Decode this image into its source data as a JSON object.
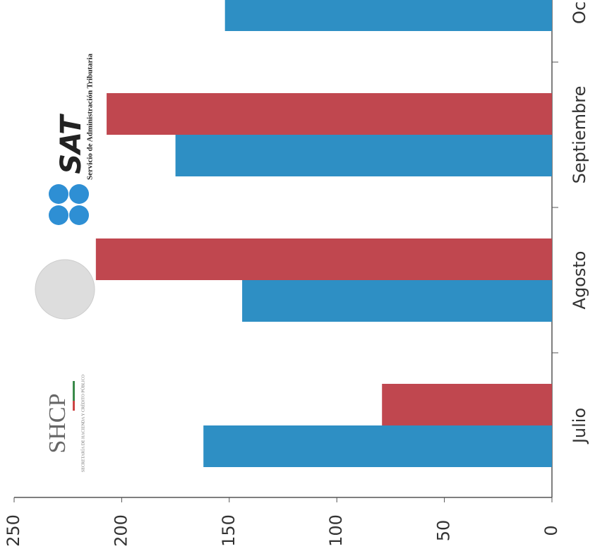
{
  "chart_data": {
    "type": "bar",
    "orientation": "horizontal",
    "categories": [
      "Julio",
      "Agosto",
      "Septiembre",
      "Oc"
    ],
    "series": [
      {
        "color": "#c0474f",
        "values": [
          79,
          212,
          207,
          null
        ]
      },
      {
        "color": "#2e8fc4",
        "values": [
          162,
          144,
          175,
          152
        ]
      }
    ],
    "xlim": [
      0,
      250
    ],
    "xticks": [
      0,
      50,
      100,
      150,
      200,
      250
    ],
    "grid": false
  },
  "logos": {
    "shcp": "SHCP",
    "shcp_subtitle": "SECRETARÍA DE HACIENDA Y CRÉDITO PÚBLICO",
    "sat": "SAT",
    "sat_subtitle": "Servicio de Administración Tributaria"
  }
}
